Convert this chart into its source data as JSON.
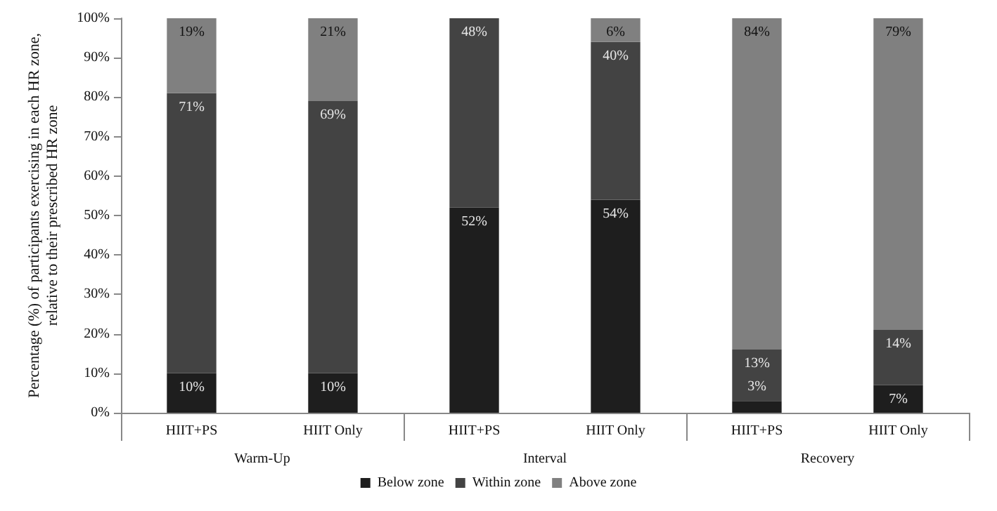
{
  "chart_data": {
    "type": "bar",
    "stacked": true,
    "ylabel": "Percentage (%) of participants exercising in each HR zone,\nrelative to their prescribed HR zone",
    "categories": [
      "HIIT+PS",
      "HIIT Only",
      "HIIT+PS",
      "HIIT Only",
      "HIIT+PS",
      "HIIT Only"
    ],
    "annotations": [
      "Warm-Up",
      "Interval",
      "Recovery"
    ],
    "series": [
      {
        "name": "Below zone",
        "color": "#1e1e1e",
        "values": [
          10,
          10,
          52,
          54,
          3,
          7
        ],
        "value_labels": [
          "10%",
          "10%",
          "52%",
          "54%",
          "3%",
          "7%"
        ]
      },
      {
        "name": "Within zone",
        "color": "#434343",
        "values": [
          71,
          69,
          48,
          40,
          13,
          14
        ],
        "value_labels": [
          "71%",
          "69%",
          "48%",
          "40%",
          "13%",
          "14%"
        ]
      },
      {
        "name": "Above zone",
        "color": "#808080",
        "values": [
          19,
          21,
          0,
          6,
          84,
          79
        ],
        "value_labels": [
          "19%",
          "21%",
          null,
          "6%",
          "84%",
          "79%"
        ]
      }
    ],
    "ylim": [
      0,
      100
    ],
    "yticks": [
      {
        "value": 0,
        "label": "0%"
      },
      {
        "value": 10,
        "label": "10%"
      },
      {
        "value": 20,
        "label": "20%"
      },
      {
        "value": 30,
        "label": "30%"
      },
      {
        "value": 40,
        "label": "40%"
      },
      {
        "value": 50,
        "label": "50%"
      },
      {
        "value": 60,
        "label": "60%"
      },
      {
        "value": 70,
        "label": "70%"
      },
      {
        "value": 80,
        "label": "80%"
      },
      {
        "value": 90,
        "label": "90%"
      },
      {
        "value": 100,
        "label": "100%"
      }
    ],
    "legend": "bottom",
    "grid": false
  }
}
